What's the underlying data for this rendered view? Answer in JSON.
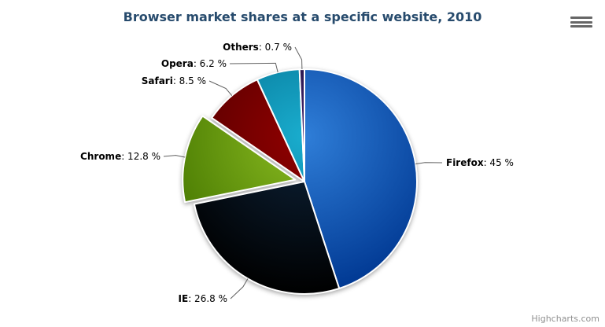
{
  "chart": {
    "title": "Browser market shares at a specific website, 2010",
    "credits_label": "Highcharts.com",
    "menu_icon": "hamburger-menu-icon"
  },
  "chart_data": {
    "type": "pie",
    "title": "Browser market shares at a specific website, 2010",
    "unit": "%",
    "legend_position": "none",
    "label_format": "Name: value %",
    "slices": [
      {
        "name": "Firefox",
        "value": 45,
        "value_label": "45",
        "color": "#2f7ed8",
        "sliced": false
      },
      {
        "name": "IE",
        "value": 26.8,
        "value_label": "26.8",
        "color": "#0d233a",
        "sliced": false
      },
      {
        "name": "Chrome",
        "value": 12.8,
        "value_label": "12.8",
        "color": "#8bbc21",
        "sliced": true
      },
      {
        "name": "Safari",
        "value": 8.5,
        "value_label": "8.5",
        "color": "#910000",
        "sliced": false
      },
      {
        "name": "Opera",
        "value": 6.2,
        "value_label": "6.2",
        "color": "#1aadce",
        "sliced": false
      },
      {
        "name": "Others",
        "value": 0.7,
        "value_label": "0.7",
        "color": "#492970",
        "sliced": false
      }
    ]
  }
}
